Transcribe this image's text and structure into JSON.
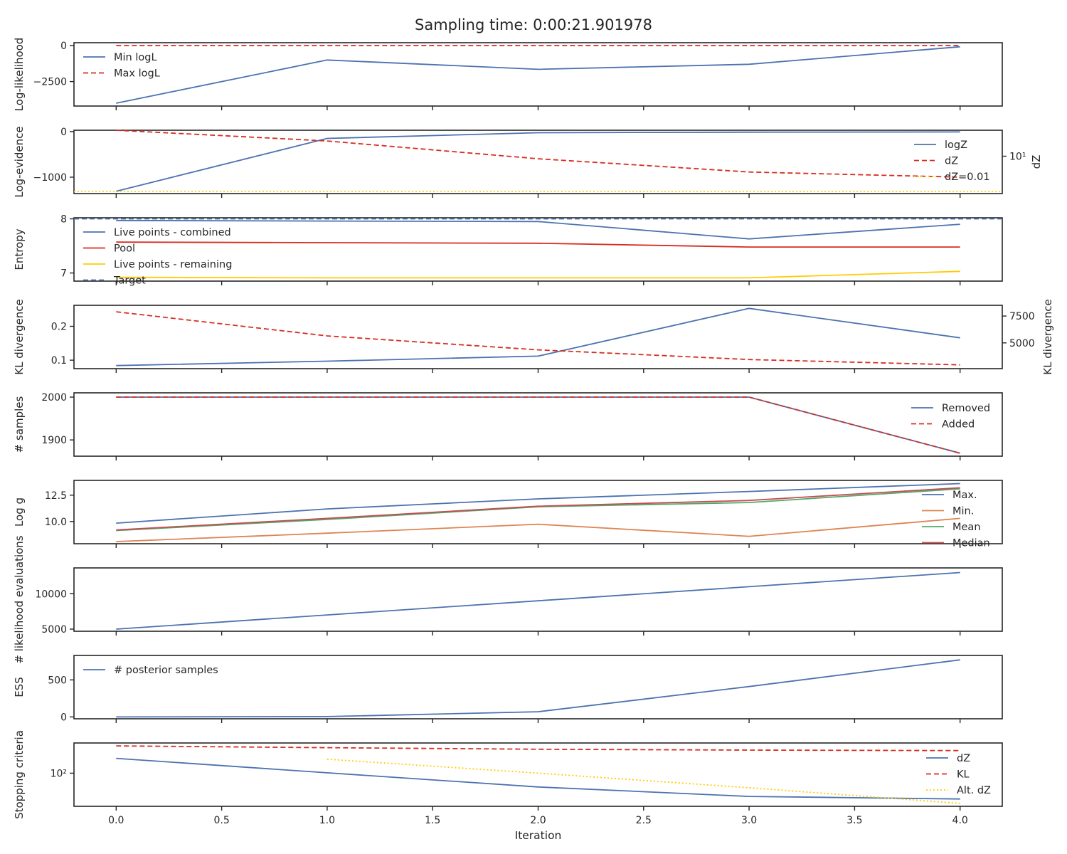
{
  "figure": {
    "title": "Sampling time: 0:00:21.901978"
  },
  "colors": {
    "blue": "#4c72b0",
    "red": "#d62d20",
    "orange": "#dd8452",
    "green": "#55a868",
    "brick": "#c44e52",
    "yellow": "#ffcc00",
    "gray_dashed": "#4c72b0",
    "axis": "#262626"
  },
  "chart_data": [
    {
      "type": "line",
      "ylabel": "Log-likelihood",
      "x": [
        0,
        1,
        2,
        3,
        4
      ],
      "ylim": [
        -4200,
        200
      ],
      "yticks": [
        {
          "v": 0,
          "label": "0"
        },
        {
          "v": -2500,
          "label": "−2500"
        }
      ],
      "legend": "top-left",
      "series": [
        {
          "name": "Min logL",
          "values": [
            -4000,
            -1000,
            -1650,
            -1300,
            -80
          ],
          "color": "blue",
          "dash": "solid"
        },
        {
          "name": "Max logL",
          "values": [
            0,
            0,
            0,
            0,
            0
          ],
          "color": "red",
          "dash": "dashed"
        }
      ]
    },
    {
      "type": "line",
      "ylabel": "Log-evidence",
      "y2label": "dZ",
      "x": [
        0,
        1,
        2,
        3,
        4
      ],
      "ylim": [
        -1360,
        30
      ],
      "yticks": [
        {
          "v": 0,
          "label": "0"
        },
        {
          "v": -1000,
          "label": "−1000"
        }
      ],
      "y2lim": [
        0.001,
        1
      ],
      "y2ticks": [
        {
          "v": 0.5,
          "label": "10¹"
        }
      ],
      "legend": "right",
      "series": [
        {
          "name": "logZ",
          "values": [
            -1310,
            -150,
            -25,
            -12,
            -8
          ],
          "color": "blue",
          "dash": "solid",
          "axis": "left"
        },
        {
          "name": "dZ",
          "values": [
            1.0,
            0.83,
            0.55,
            0.34,
            0.26
          ],
          "color": "red",
          "dash": "dashed",
          "axis": "right",
          "scale": "linear-display"
        },
        {
          "name": "dZ=0.01",
          "values": [
            0.03,
            0.03,
            0.03,
            0.03,
            0.03
          ],
          "color": "yellow",
          "dash": "dotted",
          "axis": "right",
          "scale": "linear-display"
        }
      ]
    },
    {
      "type": "line",
      "ylabel": "Entropy",
      "x": [
        0,
        1,
        2,
        3,
        4
      ],
      "ylim": [
        6.85,
        8.02
      ],
      "yticks": [
        {
          "v": 8,
          "label": "8"
        },
        {
          "v": 7,
          "label": "7"
        }
      ],
      "legend": "top-left",
      "series": [
        {
          "name": "Live points - combined",
          "values": [
            7.97,
            7.96,
            7.95,
            7.63,
            7.9
          ],
          "color": "blue",
          "dash": "solid"
        },
        {
          "name": "Pool",
          "values": [
            7.57,
            7.56,
            7.55,
            7.48,
            7.48
          ],
          "color": "red",
          "dash": "solid"
        },
        {
          "name": "Live points - remaining",
          "values": [
            6.92,
            6.91,
            6.91,
            6.91,
            7.03
          ],
          "color": "yellow",
          "dash": "solid"
        },
        {
          "name": "Target",
          "values": [
            8.0,
            8.0,
            8.0,
            8.0,
            8.0
          ],
          "color": "gray_dashed",
          "dash": "dashed"
        }
      ]
    },
    {
      "type": "line",
      "ylabel": "KL divergence",
      "y2label": "KL divergence",
      "x": [
        0,
        1,
        2,
        3,
        4
      ],
      "ylim": [
        0.075,
        0.262
      ],
      "yticks": [
        {
          "v": 0.1,
          "label": "0.1"
        },
        {
          "v": 0.2,
          "label": "0.2"
        }
      ],
      "y2lim": [
        2600,
        8500
      ],
      "y2ticks": [
        {
          "v": 5000,
          "label": "5000"
        },
        {
          "v": 7500,
          "label": "7500"
        }
      ],
      "series": [
        {
          "name": "",
          "values": [
            0.084,
            0.097,
            0.112,
            0.253,
            0.166
          ],
          "color": "blue",
          "dash": "solid",
          "axis": "left"
        },
        {
          "name": "",
          "values": [
            7900,
            5650,
            4350,
            3450,
            2950
          ],
          "color": "red",
          "dash": "dashed",
          "axis": "right"
        }
      ]
    },
    {
      "type": "line",
      "ylabel": "# samples",
      "x": [
        0,
        1,
        2,
        3,
        4
      ],
      "ylim": [
        1862,
        2010
      ],
      "yticks": [
        {
          "v": 1900,
          "label": "1900"
        },
        {
          "v": 2000,
          "label": "2000"
        }
      ],
      "legend": "right",
      "series": [
        {
          "name": "Removed",
          "values": [
            2000,
            2000,
            2000,
            2000,
            1869
          ],
          "color": "blue",
          "dash": "solid"
        },
        {
          "name": "Added",
          "values": [
            2000,
            2000,
            2000,
            2000,
            1869
          ],
          "color": "red",
          "dash": "dashed"
        }
      ]
    },
    {
      "type": "line",
      "ylabel": "Log g",
      "x": [
        0,
        1,
        2,
        3,
        4
      ],
      "ylim": [
        7.9,
        13.9
      ],
      "yticks": [
        {
          "v": 10,
          "label": "10.0"
        },
        {
          "v": 12.5,
          "label": "12.5"
        }
      ],
      "legend": "right",
      "series": [
        {
          "name": "Max.",
          "values": [
            9.85,
            11.2,
            12.15,
            12.85,
            13.6
          ],
          "color": "blue",
          "dash": "solid"
        },
        {
          "name": "Min.",
          "values": [
            8.1,
            8.9,
            9.75,
            8.6,
            10.3
          ],
          "color": "orange",
          "dash": "solid"
        },
        {
          "name": "Mean",
          "values": [
            9.15,
            10.2,
            11.4,
            11.8,
            13.1
          ],
          "color": "green",
          "dash": "solid"
        },
        {
          "name": "Median",
          "values": [
            9.2,
            10.3,
            11.45,
            12.0,
            13.2
          ],
          "color": "brick",
          "dash": "solid"
        }
      ]
    },
    {
      "type": "line",
      "ylabel": "# likelihood evaluations",
      "x": [
        0,
        1,
        2,
        3,
        4
      ],
      "ylim": [
        4700,
        13650
      ],
      "yticks": [
        {
          "v": 5000,
          "label": "5000"
        },
        {
          "v": 10000,
          "label": "10000"
        }
      ],
      "series": [
        {
          "name": "",
          "values": [
            5000,
            7000,
            9000,
            11000,
            13000
          ],
          "color": "blue",
          "dash": "solid"
        }
      ]
    },
    {
      "type": "line",
      "ylabel": "ESS",
      "x": [
        0,
        1,
        2,
        3,
        4
      ],
      "ylim": [
        -25,
        830
      ],
      "yticks": [
        {
          "v": 0,
          "label": "0"
        },
        {
          "v": 500,
          "label": "500"
        }
      ],
      "legend": "top-left",
      "series": [
        {
          "name": "# posterior samples",
          "values": [
            0,
            5,
            70,
            410,
            770
          ],
          "color": "blue",
          "dash": "solid"
        }
      ]
    },
    {
      "type": "line",
      "ylabel": "Stopping criteria",
      "xlabel": "Iteration",
      "x": [
        0,
        1,
        2,
        3,
        4
      ],
      "scale": "log",
      "ylim": [
        8,
        1000
      ],
      "yticks": [
        {
          "v": 100,
          "label": "10²"
        }
      ],
      "xticks": [
        0,
        0.5,
        1,
        1.5,
        2,
        2.5,
        3,
        3.5,
        4
      ],
      "xticklabels": [
        "0.0",
        "0.5",
        "1.0",
        "1.5",
        "2.0",
        "2.5",
        "3.0",
        "3.5",
        "4.0"
      ],
      "legend": "right",
      "series": [
        {
          "name": "dZ",
          "values": [
            310,
            103,
            35,
            17,
            14
          ],
          "color": "blue",
          "dash": "solid"
        },
        {
          "name": "KL",
          "values": [
            800,
            700,
            620,
            580,
            560
          ],
          "color": "red",
          "dash": "dashed"
        },
        {
          "name": "Alt. dZ",
          "values": [
            null,
            290,
            100,
            33,
            10
          ],
          "color": "yellow",
          "dash": "dotted"
        }
      ]
    }
  ]
}
